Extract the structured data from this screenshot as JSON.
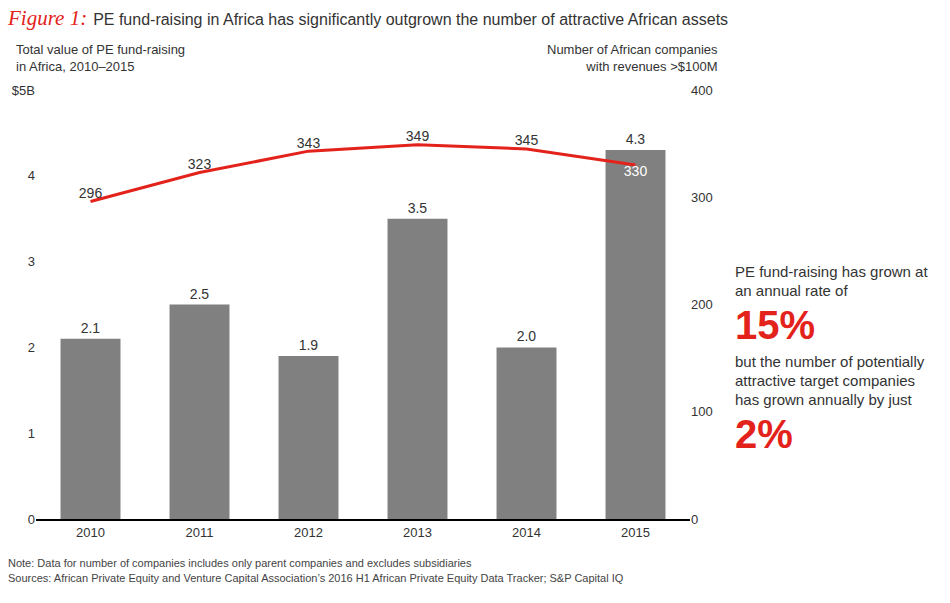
{
  "chart_data": {
    "type": "bar",
    "title_label": "Figure 1:",
    "title": "PE fund-raising in Africa has significantly outgrown the number of attractive African assets",
    "ylabel": "Total value of PE fund-raising\nin Africa, 2010–2015",
    "y2label": "Number of African companies\nwith revenues >$100M",
    "categories": [
      "2010",
      "2011",
      "2012",
      "2013",
      "2014",
      "2015"
    ],
    "series": [
      {
        "type": "bar",
        "color": "#808080",
        "values": [
          2.1,
          2.5,
          1.9,
          3.5,
          2.0,
          4.3
        ],
        "value_labels": [
          "2.1",
          "2.5",
          "1.9",
          "3.5",
          "2.0",
          "4.3"
        ],
        "data_labels": true
      },
      {
        "type": "line",
        "axis": "y2",
        "color": "#e3231b",
        "values": [
          296,
          323,
          343,
          349,
          345,
          330
        ],
        "data_labels": true
      }
    ],
    "ylim": [
      0,
      5
    ],
    "yticks": [
      0,
      1,
      2,
      3,
      4,
      {
        "value": 5,
        "label": "$5B"
      }
    ],
    "y2lim": [
      0,
      400
    ],
    "y2ticks": [
      0,
      100,
      200,
      300,
      400
    ],
    "grid": false,
    "annotations": [
      "PE fund-raising has grown at an annual rate of",
      "15%",
      "but the number of potentially attractive target companies has grown annually by just",
      "2%"
    ],
    "note": "Note: Data for number of companies includes only parent companies and excludes subsidiaries",
    "source": "Sources: African Private Equity and Venture Capital Association’s 2016 H1 African Private Equity Data Tracker; S&P Capital IQ"
  }
}
